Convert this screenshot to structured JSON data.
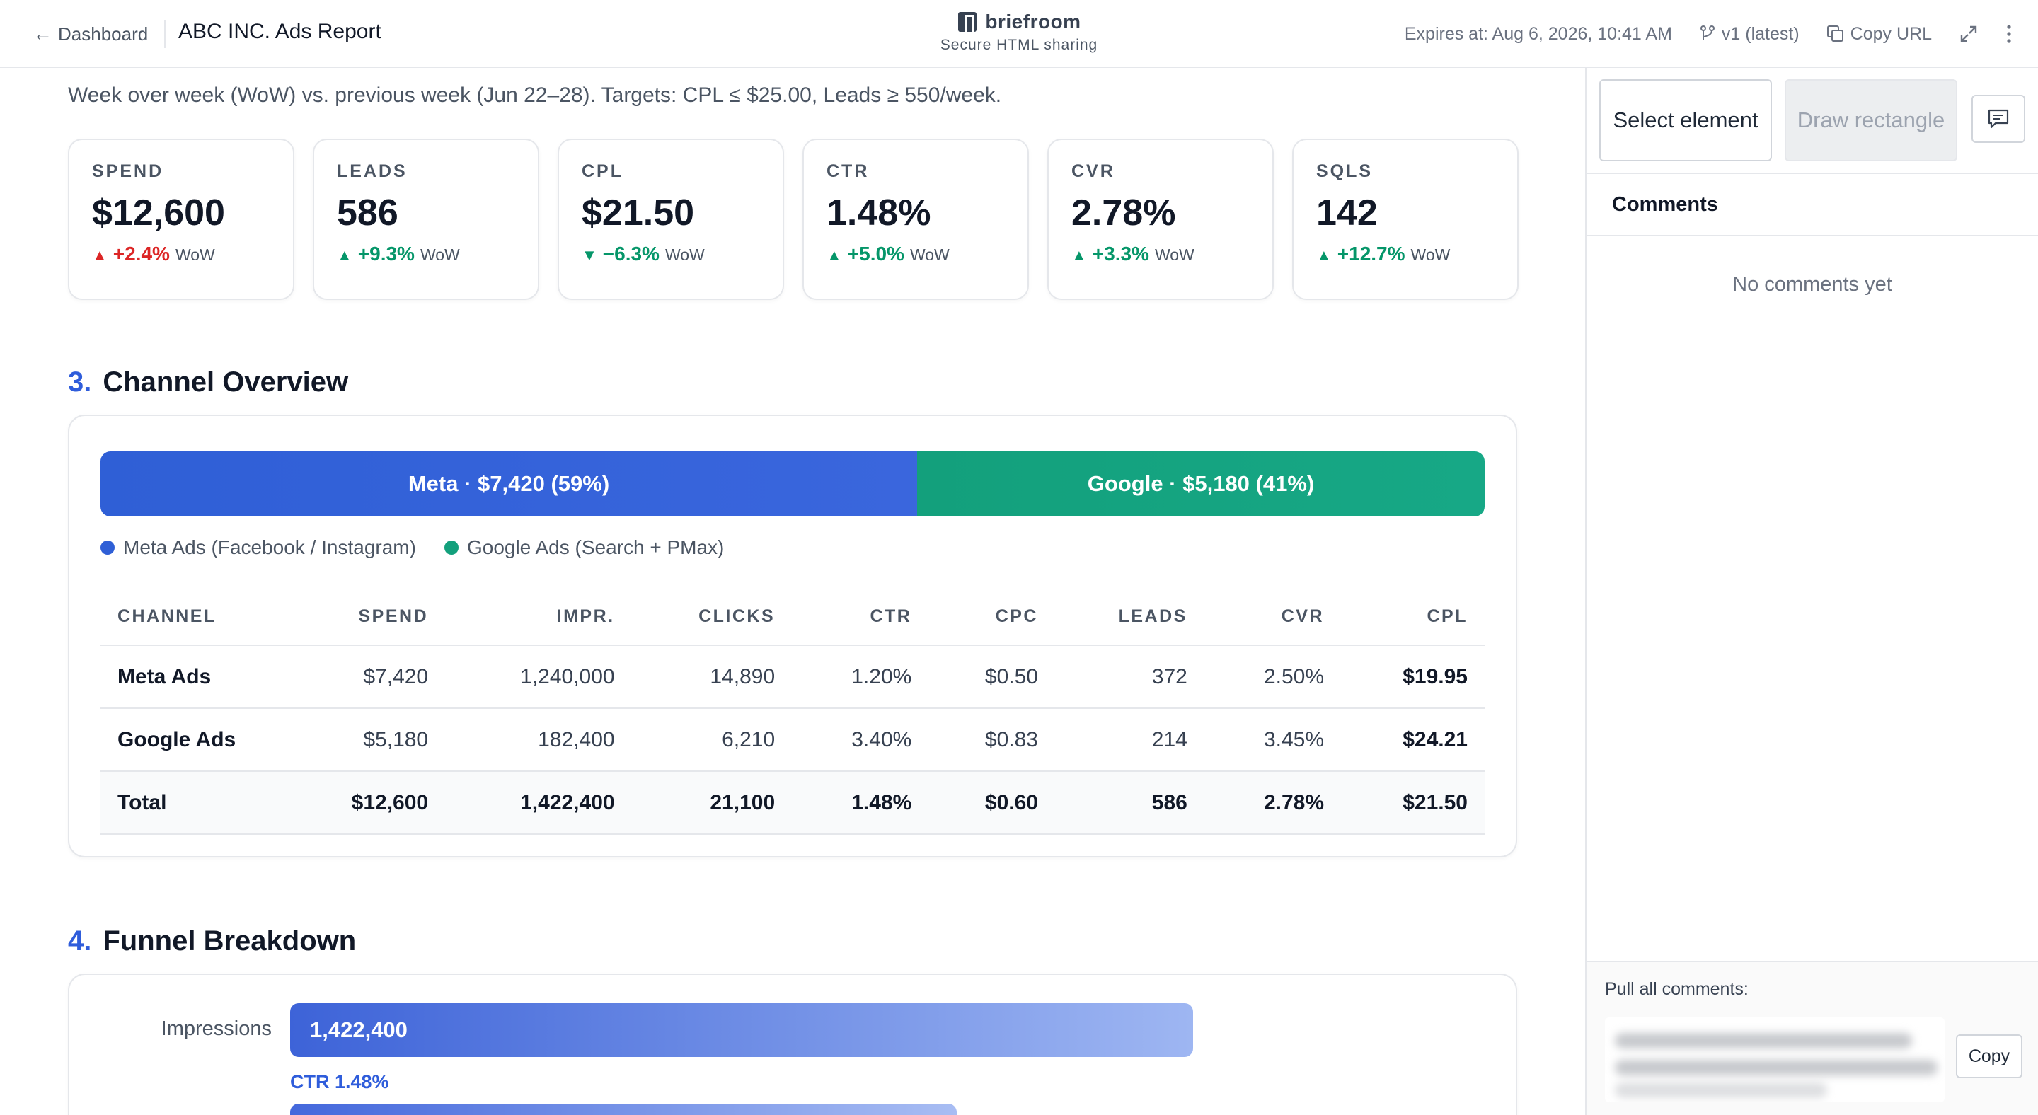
{
  "topbar": {
    "back_label": "Dashboard",
    "title": "ABC INC. Ads Report",
    "brand_name": "briefroom",
    "brand_tagline": "Secure HTML sharing",
    "expires": "Expires at: Aug 6, 2026, 10:41 AM",
    "version": "v1 (latest)",
    "copy_url": "Copy URL",
    "icons": [
      "back-arrow-icon",
      "briefroom-logo-icon",
      "version-branch-icon",
      "copy-icon",
      "expand-icon",
      "more-vertical-icon"
    ]
  },
  "report": {
    "subtitle": "Week over week (WoW) vs. previous week (Jun 22–28). Targets: CPL ≤ $25.00, Leads ≥ 550/week.",
    "kpis": [
      {
        "label": "SPEND",
        "value": "$12,600",
        "arrow": "▲",
        "delta": "+2.4%",
        "suffix": "WoW",
        "color": "#dc2626"
      },
      {
        "label": "LEADS",
        "value": "586",
        "arrow": "▲",
        "delta": "+9.3%",
        "suffix": "WoW",
        "color": "#059669"
      },
      {
        "label": "CPL",
        "value": "$21.50",
        "arrow": "▼",
        "delta": "−6.3%",
        "suffix": "WoW",
        "color": "#059669"
      },
      {
        "label": "CTR",
        "value": "1.48%",
        "arrow": "▲",
        "delta": "+5.0%",
        "suffix": "WoW",
        "color": "#059669"
      },
      {
        "label": "CVR",
        "value": "2.78%",
        "arrow": "▲",
        "delta": "+3.3%",
        "suffix": "WoW",
        "color": "#059669"
      },
      {
        "label": "SQLS",
        "value": "142",
        "arrow": "▲",
        "delta": "+12.7%",
        "suffix": "WoW",
        "color": "#059669"
      }
    ],
    "channel_section": {
      "number": "3.",
      "title": "Channel Overview",
      "split": [
        {
          "label": "Meta · $7,420 (59%)",
          "share": 0.59,
          "color": "#2f5fd6"
        },
        {
          "label": "Google · $5,180 (41%)",
          "share": 0.41,
          "color": "#13a07c"
        }
      ],
      "legend": [
        {
          "label": "Meta Ads (Facebook / Instagram)",
          "color": "#2f5fd6"
        },
        {
          "label": "Google Ads (Search + PMax)",
          "color": "#13a07c"
        }
      ],
      "table": {
        "columns": [
          "CHANNEL",
          "SPEND",
          "IMPR.",
          "CLICKS",
          "CTR",
          "CPC",
          "LEADS",
          "CVR",
          "CPL"
        ],
        "rows": [
          [
            "Meta Ads",
            "$7,420",
            "1,240,000",
            "14,890",
            "1.20%",
            "$0.50",
            "372",
            "2.50%",
            "$19.95"
          ],
          [
            "Google Ads",
            "$5,180",
            "182,400",
            "6,210",
            "3.40%",
            "$0.83",
            "214",
            "3.45%",
            "$24.21"
          ]
        ],
        "total": [
          "Total",
          "$12,600",
          "1,422,400",
          "21,100",
          "1.48%",
          "$0.60",
          "586",
          "2.78%",
          "$21.50"
        ]
      }
    },
    "funnel_section": {
      "number": "4.",
      "title": "Funnel Breakdown",
      "stages": [
        {
          "label": "Impressions",
          "value": "1,422,400",
          "fill": 1.0
        }
      ],
      "rates": [
        "CTR 1.48%"
      ]
    }
  },
  "sidebar": {
    "select_label": "Select element",
    "draw_label": "Draw rectangle",
    "comments_heading": "Comments",
    "empty_state": "No comments yet",
    "pull_label": "Pull all comments:",
    "copy_label": "Copy",
    "icons": [
      "comment-icon"
    ]
  }
}
